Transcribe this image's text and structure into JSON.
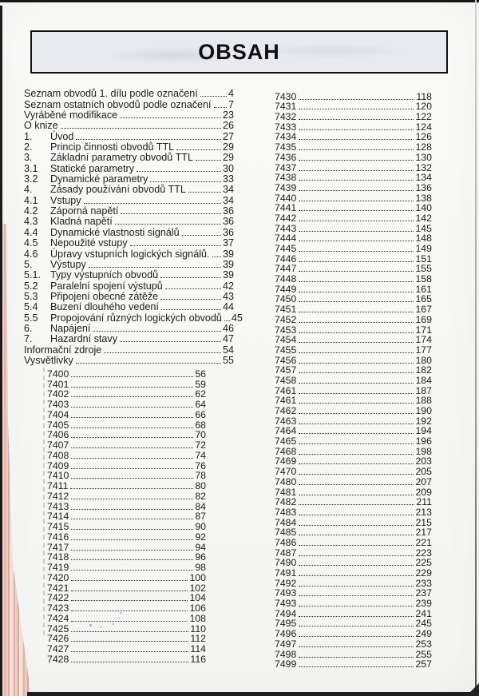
{
  "title": "OBSAH",
  "toc": [
    {
      "num": "",
      "label": "Seznam obvodů 1. dílu podle označení",
      "page": "4"
    },
    {
      "num": "",
      "label": "Seznam ostatních obvodů podle označení",
      "page": "7"
    },
    {
      "num": "",
      "label": "Vyráběné modifikace",
      "page": "23"
    },
    {
      "num": "",
      "label": "O knize",
      "page": "26"
    },
    {
      "num": "1.",
      "label": "Úvod",
      "page": "27"
    },
    {
      "num": "2.",
      "label": "Princip činnosti obvodů TTL",
      "page": "29"
    },
    {
      "num": "3.",
      "label": "Základní parametry obvodů TTL",
      "page": "29"
    },
    {
      "num": "3.1",
      "label": "Statické parametry",
      "page": "30"
    },
    {
      "num": "3.2",
      "label": "Dynamické parametry",
      "page": "33"
    },
    {
      "num": "4.",
      "label": "Zásady používání obvodů TTL",
      "page": "34"
    },
    {
      "num": "4.1",
      "label": "Vstupy",
      "page": "34"
    },
    {
      "num": "4.2",
      "label": "Záporná napětí",
      "page": "36"
    },
    {
      "num": "4.3",
      "label": "Kladná napětí",
      "page": "36"
    },
    {
      "num": "4.4",
      "label": "Dynamické vlastnosti signálů",
      "page": "36"
    },
    {
      "num": "4.5",
      "label": "Nepoužité vstupy",
      "page": "37"
    },
    {
      "num": "4.6",
      "label": "Úpravy vstupních logických signálů.",
      "page": "39"
    },
    {
      "num": "5.",
      "label": "Výstupy",
      "page": "39"
    },
    {
      "num": "5.1.",
      "label": "Typy výstupních obvodů",
      "page": "39"
    },
    {
      "num": "5.2",
      "label": "Paralelní spojení výstupů",
      "page": "42"
    },
    {
      "num": "5.3",
      "label": "Připojení obecné zátěže",
      "page": "43"
    },
    {
      "num": "5.4",
      "label": "Buzení dlouhého vedení",
      "page": "44"
    },
    {
      "num": "5.5",
      "label": "Propojování různých logických obvodů",
      "page": "45"
    },
    {
      "num": "6.",
      "label": "Napájení",
      "page": "46"
    },
    {
      "num": "7.",
      "label": "Hazardní stavy",
      "page": "47"
    },
    {
      "num": "",
      "label": "Informační zdroje",
      "page": "54"
    },
    {
      "num": "",
      "label": "Vysvětlivky",
      "page": "55"
    }
  ],
  "ic_left": [
    {
      "label": "7400",
      "page": "56"
    },
    {
      "label": "7401",
      "page": "59"
    },
    {
      "label": "7402",
      "page": "62"
    },
    {
      "label": "7403",
      "page": "64"
    },
    {
      "label": "7404",
      "page": "66"
    },
    {
      "label": "7405",
      "page": "68"
    },
    {
      "label": "7406",
      "page": "70"
    },
    {
      "label": "7407",
      "page": "72"
    },
    {
      "label": "7408",
      "page": "74"
    },
    {
      "label": "7409",
      "page": "76"
    },
    {
      "label": "7410",
      "page": "78"
    },
    {
      "label": "7411",
      "page": "80"
    },
    {
      "label": "7412",
      "page": "82"
    },
    {
      "label": "7413",
      "page": "84"
    },
    {
      "label": "7414",
      "page": "87"
    },
    {
      "label": "7415",
      "page": "90"
    },
    {
      "label": "7416",
      "page": "92"
    },
    {
      "label": "7417",
      "page": "94"
    },
    {
      "label": "7418",
      "page": "96"
    },
    {
      "label": "7419",
      "page": "98"
    },
    {
      "label": "7420",
      "page": "100"
    },
    {
      "label": "7421",
      "page": "102"
    },
    {
      "label": "7422",
      "page": "104"
    },
    {
      "label": "7423",
      "page": "106"
    },
    {
      "label": "7424",
      "page": "108"
    },
    {
      "label": "7425",
      "page": "110"
    },
    {
      "label": "7426",
      "page": "112"
    },
    {
      "label": "7427",
      "page": "114"
    },
    {
      "label": "7428",
      "page": "116"
    }
  ],
  "ic_right": [
    {
      "label": "7430",
      "page": "118"
    },
    {
      "label": "7431",
      "page": "120"
    },
    {
      "label": "7432",
      "page": "122"
    },
    {
      "label": "7433",
      "page": "124"
    },
    {
      "label": "7434",
      "page": "126"
    },
    {
      "label": "7435",
      "page": "128"
    },
    {
      "label": "7436",
      "page": "130"
    },
    {
      "label": "7437",
      "page": "132"
    },
    {
      "label": "7438",
      "page": "134"
    },
    {
      "label": "7439",
      "page": "136"
    },
    {
      "label": "7440",
      "page": "138"
    },
    {
      "label": "7441",
      "page": "140"
    },
    {
      "label": "7442",
      "page": "142"
    },
    {
      "label": "7443",
      "page": "145"
    },
    {
      "label": "7444",
      "page": "148"
    },
    {
      "label": "7445",
      "page": "149"
    },
    {
      "label": "7446",
      "page": "151"
    },
    {
      "label": "7447",
      "page": "155"
    },
    {
      "label": "7448",
      "page": "158"
    },
    {
      "label": "7449",
      "page": "161"
    },
    {
      "label": "7450",
      "page": "165"
    },
    {
      "label": "7451",
      "page": "167"
    },
    {
      "label": "7452",
      "page": "169"
    },
    {
      "label": "7453",
      "page": "171"
    },
    {
      "label": "7454",
      "page": "174"
    },
    {
      "label": "7455",
      "page": "177"
    },
    {
      "label": "7456",
      "page": "180"
    },
    {
      "label": "7457",
      "page": "182"
    },
    {
      "label": "7458",
      "page": "184"
    },
    {
      "label": "7461",
      "page": "187"
    },
    {
      "label": "7461",
      "page": "188"
    },
    {
      "label": "7462",
      "page": "190"
    },
    {
      "label": "7463",
      "page": "192"
    },
    {
      "label": "7464",
      "page": "194"
    },
    {
      "label": "7465",
      "page": "196"
    },
    {
      "label": "7468",
      "page": "198"
    },
    {
      "label": "7469",
      "page": "203"
    },
    {
      "label": "7470",
      "page": "205"
    },
    {
      "label": "7480",
      "page": "207"
    },
    {
      "label": "7481",
      "page": "209"
    },
    {
      "label": "7482",
      "page": "211"
    },
    {
      "label": "7483",
      "page": "213"
    },
    {
      "label": "7484",
      "page": "215"
    },
    {
      "label": "7485",
      "page": "217"
    },
    {
      "label": "7486",
      "page": "221"
    },
    {
      "label": "7487",
      "page": "223"
    },
    {
      "label": "7490",
      "page": "225"
    },
    {
      "label": "7491",
      "page": "229"
    },
    {
      "label": "7492",
      "page": "233"
    },
    {
      "label": "7493",
      "page": "237"
    },
    {
      "label": "7493",
      "page": "239"
    },
    {
      "label": "7494",
      "page": "241"
    },
    {
      "label": "7495",
      "page": "245"
    },
    {
      "label": "7496",
      "page": "249"
    },
    {
      "label": "7497",
      "page": "253"
    },
    {
      "label": "7498",
      "page": "255"
    },
    {
      "label": "7499",
      "page": "257"
    }
  ]
}
